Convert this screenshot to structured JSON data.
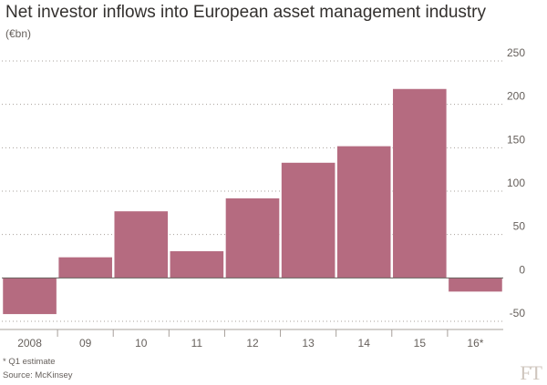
{
  "title": "Net investor inflows into European asset management industry",
  "subtitle": "(€bn)",
  "footnote": "* Q1 estimate",
  "source": "Source: McKinsey",
  "logo": "FT",
  "colors": {
    "bar": "#b56b80",
    "bar_edge": "#ffffff",
    "grid": "#a7a09b",
    "zero_line": "#66605c",
    "tick_text": "#66605c",
    "background": "#ffffff"
  },
  "chart_data": {
    "type": "bar",
    "categories": [
      "2008",
      "09",
      "10",
      "11",
      "12",
      "13",
      "14",
      "15",
      "16*"
    ],
    "values": [
      -42,
      24,
      77,
      31,
      92,
      133,
      152,
      218,
      -16
    ],
    "title": "Net investor inflows into European asset management industry",
    "ylabel": "(€bn)",
    "xlabel": "",
    "ylim": [
      -50,
      250
    ],
    "yticks": [
      -50,
      0,
      50,
      100,
      150,
      200,
      250
    ],
    "ytick_labels": [
      "-50",
      "0",
      "50",
      "100",
      "150",
      "200",
      "250"
    ],
    "grid": true,
    "y_axis_side": "right"
  }
}
